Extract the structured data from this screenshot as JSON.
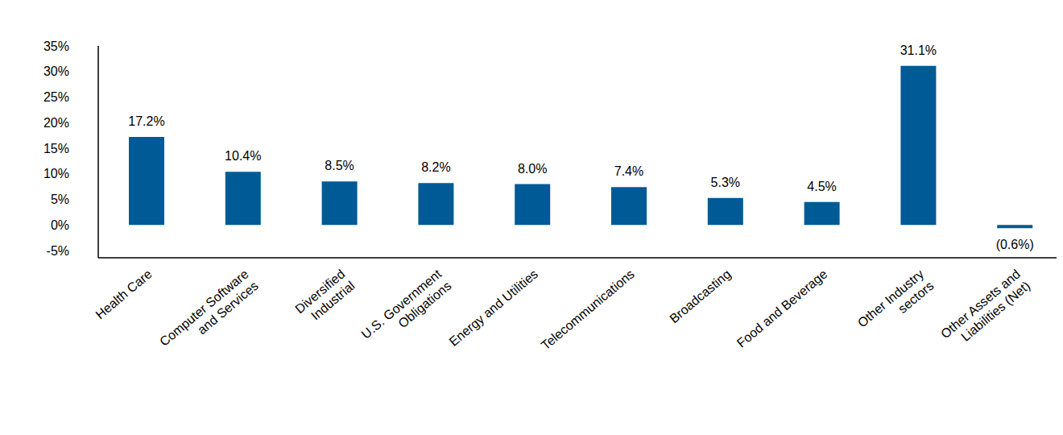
{
  "chart_data": {
    "type": "bar",
    "categories": [
      "Health Care",
      "Computer Software\nand Services",
      "Diversified\nIndustrial",
      "U.S. Government\nObligations",
      "Energy and Utilities",
      "Telecommunications",
      "Broadcasting",
      "Food and Beverage",
      "Other Industry\nsectors",
      "Other Assets and\nLiabilities (Net)"
    ],
    "values": [
      17.2,
      10.4,
      8.5,
      8.2,
      8.0,
      7.4,
      5.3,
      4.5,
      31.1,
      -0.6
    ],
    "value_labels": [
      "17.2%",
      "10.4%",
      "8.5%",
      "8.2%",
      "8.0%",
      "7.4%",
      "5.3%",
      "4.5%",
      "31.1%",
      "(0.6%)"
    ],
    "color": "#005a96",
    "ylim": [
      -6.4,
      35
    ],
    "yticks": [
      {
        "value": -5,
        "label": "-5%"
      },
      {
        "value": 0,
        "label": "0%"
      },
      {
        "value": 5,
        "label": "5%"
      },
      {
        "value": 10,
        "label": "10%"
      },
      {
        "value": 15,
        "label": "15%"
      },
      {
        "value": 20,
        "label": "20%"
      },
      {
        "value": 25,
        "label": "25%"
      },
      {
        "value": 30,
        "label": "30%"
      },
      {
        "value": 35,
        "label": "35%"
      }
    ],
    "grid": false,
    "data_labels": true
  }
}
